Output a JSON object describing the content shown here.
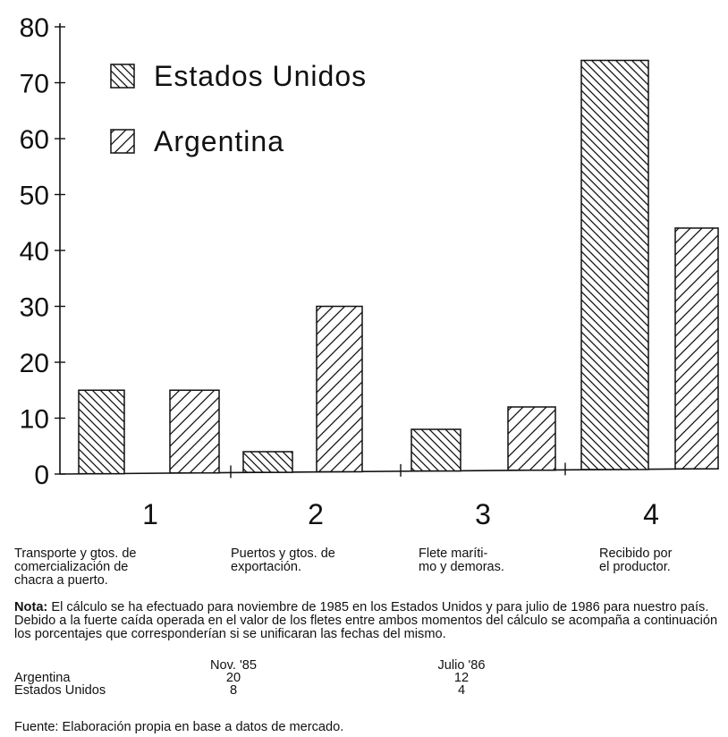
{
  "chart_data": {
    "type": "bar",
    "categories": [
      "1",
      "2",
      "3",
      "4"
    ],
    "series": [
      {
        "name": "Estados Unidos",
        "values": [
          15,
          4,
          8,
          74
        ],
        "pattern": "back-diagonal-hatch"
      },
      {
        "name": "Argentina",
        "values": [
          15,
          30,
          12,
          44
        ],
        "pattern": "forward-diagonal-hatch"
      }
    ],
    "ylim": [
      0,
      80
    ],
    "yticks": [
      "0",
      "10",
      "20",
      "30",
      "40",
      "50",
      "60",
      "70",
      "80"
    ],
    "title": "",
    "xlabel": "",
    "ylabel": "",
    "legend_position": "top-left",
    "grid": false
  },
  "category_descriptions": [
    "Transporte y gtos. de\ncomercialización de\nchacra a puerto.",
    "Puertos y gtos. de\nexportación.",
    "Flete maríti-\nmo y demoras.",
    "Recibido por\nel productor."
  ],
  "note": {
    "label": "Nota:",
    "text": "El cálculo se ha efectuado para noviembre de 1985 en los Estados Unidos y para julio de 1986 para nuestro país. Debido a la fuerte caída operada en el valor de los fletes entre ambos momentos del cálculo se acompaña a continuación los porcentajes que corresponderían si se unificaran las fechas del mismo."
  },
  "percent_table": {
    "headers": [
      "",
      "Nov. '85",
      "Julio '86"
    ],
    "rows": [
      [
        "Argentina",
        "20",
        "12"
      ],
      [
        "Estados Unidos",
        "8",
        "4"
      ]
    ]
  },
  "source": "Fuente: Elaboración propia en base a datos de mercado.",
  "colors": {
    "ink": "#111111",
    "background": "#ffffff"
  }
}
